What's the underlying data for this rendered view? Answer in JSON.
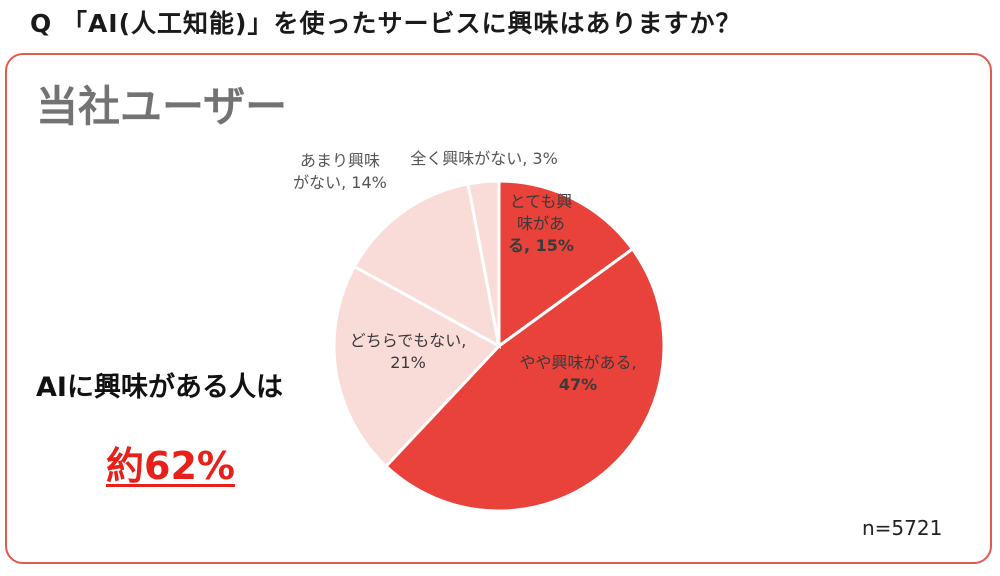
{
  "question": "Q 「AI(人工知能)」を使ったサービスに興味はありますか？",
  "panel_title": "当社ユーザー",
  "summary": {
    "label": "AIに興味がある人は",
    "value": "約62%"
  },
  "sample_size": "n=5721",
  "chart_data": {
    "type": "pie",
    "slices": [
      {
        "label_lines": [
          "とても興",
          "味があ",
          "る, 15%"
        ],
        "value": 15,
        "color": "#e8423b",
        "label_color": "#3a3a3a",
        "bold_last": true
      },
      {
        "label_lines": [
          "やや興味がある,",
          "47%"
        ],
        "value": 47,
        "color": "#e8423b",
        "label_color": "#3a3a3a",
        "bold_last": true
      },
      {
        "label_lines": [
          "どちらでもない,",
          "21%"
        ],
        "value": 21,
        "color": "#f9dcd8",
        "label_color": "#3a3a3a",
        "bold_last": false
      },
      {
        "label_lines": [
          "あまり興味",
          "がない, 14%"
        ],
        "value": 14,
        "color": "#f9dcd8",
        "label_color": "#555555",
        "bold_last": false
      },
      {
        "label_lines": [
          "全く興味がない, 3%"
        ],
        "value": 3,
        "color": "#f9dcd8",
        "label_color": "#555555",
        "bold_last": false
      }
    ]
  }
}
